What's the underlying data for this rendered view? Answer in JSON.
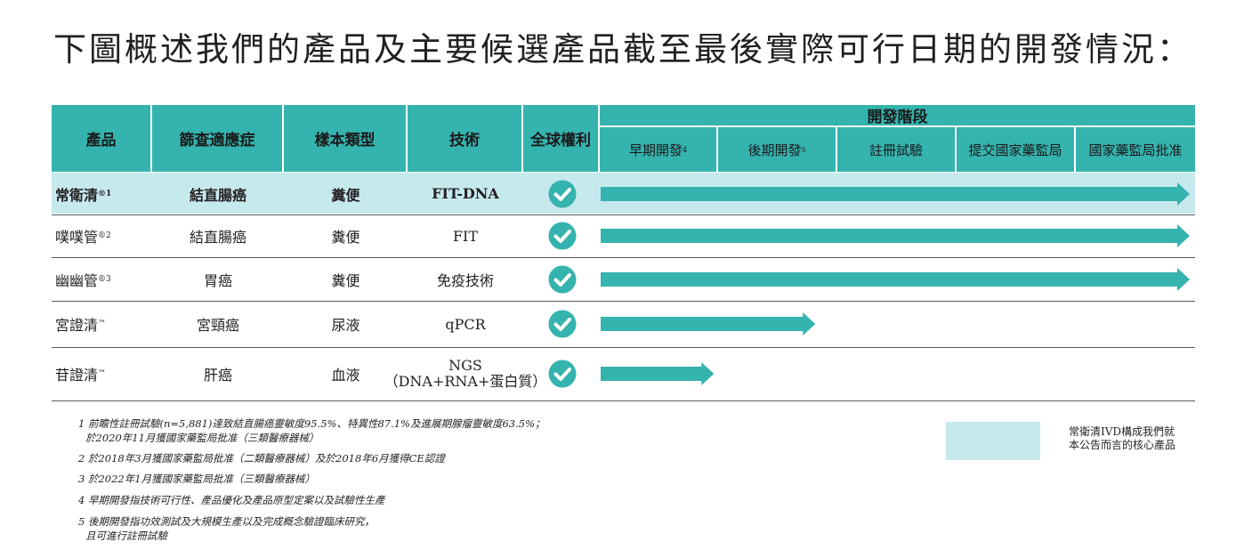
{
  "title": "下圖概述我們的產品及主要候選產品截至最後實際可行日期的開發情況：",
  "header": {
    "product": "產品",
    "indication": "篩查適應症",
    "sample": "樣本類型",
    "technology": "技術",
    "rights": "全球權利",
    "stage_group": "開發階段",
    "stages": [
      {
        "label": "早期開發",
        "note": "4"
      },
      {
        "label": "後期開發",
        "note": "5"
      },
      {
        "label": "註冊試驗",
        "note": ""
      },
      {
        "label": "提交國家藥監局",
        "note": ""
      },
      {
        "label": "國家藥監局批准",
        "note": ""
      }
    ]
  },
  "rows": [
    {
      "product": "常衛清",
      "mark": "®1",
      "indication": "結直腸癌",
      "sample": "糞便",
      "technology": "FIT-DNA",
      "tech2": "",
      "rights_icon": "check-circle-icon",
      "progress_stage": 5.0,
      "highlight": true
    },
    {
      "product": "噗噗管",
      "mark": "®2",
      "indication": "結直腸癌",
      "sample": "糞便",
      "technology": "FIT",
      "tech2": "",
      "rights_icon": "check-circle-icon",
      "progress_stage": 5.0,
      "highlight": false
    },
    {
      "product": "幽幽管",
      "mark": "®3",
      "indication": "胃癌",
      "sample": "糞便",
      "technology": "免疫技術",
      "tech2": "",
      "rights_icon": "check-circle-icon",
      "progress_stage": 5.0,
      "highlight": false
    },
    {
      "product": "宮證清",
      "mark": "™",
      "indication": "宮頸癌",
      "sample": "尿液",
      "technology": "qPCR",
      "tech2": "",
      "rights_icon": "check-circle-icon",
      "progress_stage": 1.8,
      "highlight": false
    },
    {
      "product": "苷證清",
      "mark": "™",
      "indication": "肝癌",
      "sample": "血液",
      "technology": "NGS",
      "tech2": "（DNA+RNA+蛋白質）",
      "rights_icon": "check-circle-icon",
      "progress_stage": 0.95,
      "highlight": false
    }
  ],
  "footnotes": [
    {
      "line1": "1 前瞻性註冊試驗(n=5,881)達致結直腸癌靈敏度95.5%、特異性87.1%及進展期腺瘤靈敏度63.5%；",
      "line2": "於2020年11月獲國家藥監局批准（三類醫療器械）"
    },
    {
      "line1": "2 於2018年3月獲國家藥監局批准（二類醫療器械）及於2018年6月獲得CE認證",
      "line2": ""
    },
    {
      "line1": "3 於2022年1月獲國家藥監局批准（三類醫療器械）",
      "line2": ""
    },
    {
      "line1": "4 早期開發指技術可行性、產品優化及產品原型定案以及試驗性生產",
      "line2": ""
    },
    {
      "line1": "5 後期開發指功效測試及大規模生產以及完成概念驗證臨床研究，",
      "line2": "且可進行註冊試驗"
    }
  ],
  "legend": {
    "line1": "常衛清IVD構成我們就",
    "line2": "本公告而言的核心產品"
  },
  "colors": {
    "teal": "#35b3ae",
    "highlight": "#c6e9ee"
  }
}
